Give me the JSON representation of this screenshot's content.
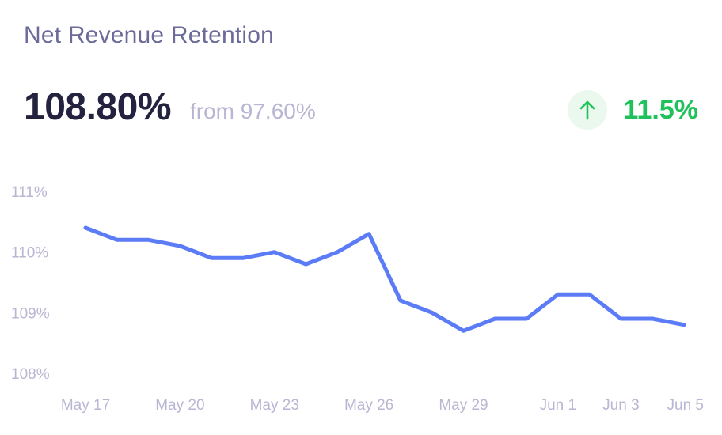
{
  "card": {
    "title": "Net Revenue Retention",
    "value": "108.80%",
    "from_text": "from 97.60%",
    "change": "11.5%",
    "change_icon": "arrow-up-icon",
    "colors": {
      "line": "#5b7cf6",
      "positive": "#1fc25a",
      "positive_bg": "#eaf8ee"
    }
  },
  "chart_data": {
    "type": "line",
    "title": "",
    "xlabel": "",
    "ylabel": "",
    "ylim": [
      108,
      111
    ],
    "y_ticks": [
      "108%",
      "109%",
      "110%",
      "111%"
    ],
    "x_ticks": [
      "May 17",
      "May 20",
      "May 23",
      "May 26",
      "May 29",
      "Jun 1",
      "Jun 3",
      "Jun 5"
    ],
    "grid": false,
    "series": [
      {
        "x": [
          "May 17",
          "May 18",
          "May 19",
          "May 20",
          "May 21",
          "May 22",
          "May 23",
          "May 24",
          "May 25",
          "May 26",
          "May 27",
          "May 28",
          "May 29",
          "May 30",
          "May 31",
          "Jun 1",
          "Jun 2",
          "Jun 3",
          "Jun 4",
          "Jun 5"
        ],
        "values": [
          110.4,
          110.2,
          110.2,
          110.1,
          109.9,
          109.9,
          110.0,
          109.8,
          110.0,
          110.3,
          109.2,
          109.0,
          108.7,
          108.9,
          108.9,
          109.3,
          109.3,
          108.9,
          108.9,
          108.8
        ]
      }
    ]
  }
}
